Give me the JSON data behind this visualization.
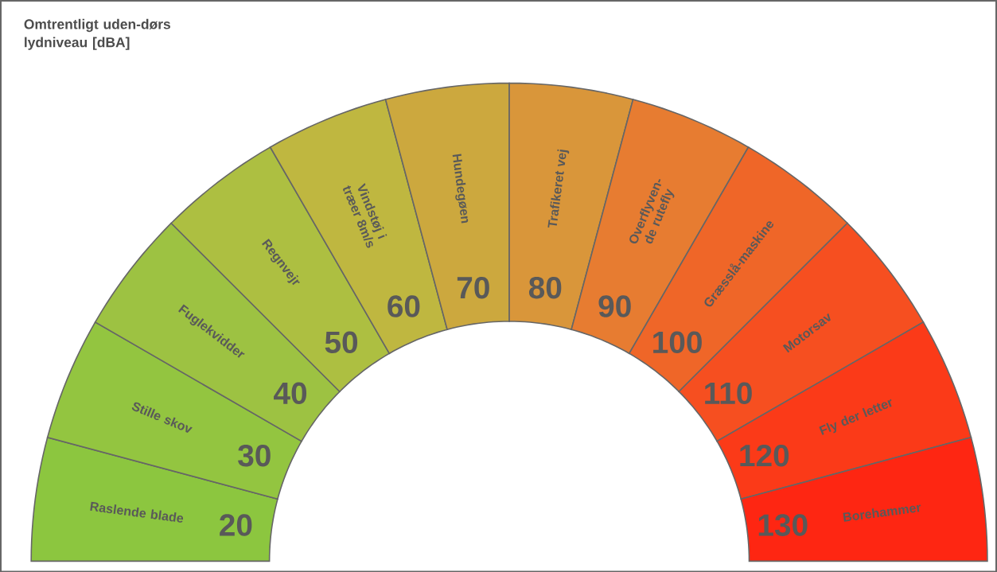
{
  "chart_data": {
    "type": "other",
    "title": "Omtrentligt uden-dørs lydniveau [dBA]",
    "categories": [
      "Raslende blade",
      "Stille skov",
      "Fuglekvidder",
      "Regnvejr",
      "Vindstøj i træer 8m/s",
      "Hundegøen",
      "Trafikeret vej",
      "Overflyven-de rutefly",
      "Græsslå-maskine",
      "Motorsav",
      "Fly der letter",
      "Borehammer"
    ],
    "values": [
      20,
      30,
      40,
      50,
      60,
      70,
      80,
      90,
      100,
      110,
      120,
      130
    ],
    "colors": [
      "#8cc63f",
      "#93c540",
      "#9dc242",
      "#adbf41",
      "#bfb740",
      "#cca83e",
      "#d9963a",
      "#e77c31",
      "#ef6628",
      "#f64f20",
      "#fb3a18",
      "#fe2612"
    ],
    "data_labels": true
  }
}
